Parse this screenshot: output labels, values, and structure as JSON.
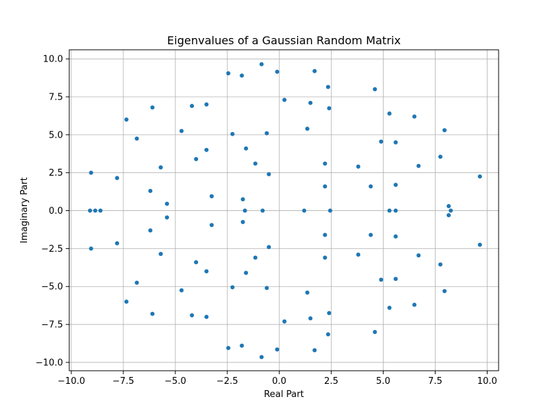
{
  "chart_data": {
    "type": "scatter",
    "title": "Eigenvalues of a Gaussian Random Matrix",
    "xlabel": "Real Part",
    "ylabel": "Imaginary Part",
    "xlim": [
      -10.1,
      10.55
    ],
    "ylim": [
      -10.55,
      10.6
    ],
    "xticks": [
      -10,
      -7.5,
      -5,
      -2.5,
      0,
      2.5,
      5,
      7.5,
      10
    ],
    "xtick_labels": [
      "−10.0",
      "−7.5",
      "−5.0",
      "−2.5",
      "0.0",
      "2.5",
      "5.0",
      "7.5",
      "10.0"
    ],
    "yticks": [
      -10,
      -7.5,
      -5,
      -2.5,
      0,
      2.5,
      5,
      7.5,
      10
    ],
    "ytick_labels": [
      "−10.0",
      "−7.5",
      "−5.0",
      "−2.5",
      "0.0",
      "2.5",
      "5.0",
      "7.5",
      "10.0"
    ],
    "grid": true,
    "marker_color": "#1f77b4",
    "points": [
      [
        -0.85,
        9.65
      ],
      [
        -0.1,
        9.15
      ],
      [
        1.7,
        9.2
      ],
      [
        -2.45,
        9.05
      ],
      [
        -1.8,
        8.9
      ],
      [
        2.35,
        8.15
      ],
      [
        4.6,
        8.0
      ],
      [
        0.25,
        7.3
      ],
      [
        1.5,
        7.1
      ],
      [
        2.4,
        6.75
      ],
      [
        -4.2,
        6.9
      ],
      [
        -3.5,
        7.0
      ],
      [
        -6.1,
        6.8
      ],
      [
        5.3,
        6.4
      ],
      [
        6.5,
        6.2
      ],
      [
        -7.35,
        6.0
      ],
      [
        -6.85,
        4.75
      ],
      [
        -4.7,
        5.25
      ],
      [
        -2.25,
        5.05
      ],
      [
        -0.6,
        5.1
      ],
      [
        1.35,
        5.4
      ],
      [
        7.95,
        5.3
      ],
      [
        4.9,
        4.55
      ],
      [
        5.6,
        4.5
      ],
      [
        -3.5,
        4.0
      ],
      [
        -1.6,
        4.1
      ],
      [
        -4.0,
        3.4
      ],
      [
        -1.15,
        3.1
      ],
      [
        2.2,
        3.1
      ],
      [
        7.75,
        3.55
      ],
      [
        -5.7,
        2.85
      ],
      [
        3.8,
        2.9
      ],
      [
        6.7,
        2.95
      ],
      [
        -9.05,
        2.5
      ],
      [
        -0.5,
        2.4
      ],
      [
        -7.8,
        2.15
      ],
      [
        9.65,
        2.25
      ],
      [
        -6.2,
        1.3
      ],
      [
        2.2,
        1.6
      ],
      [
        4.4,
        1.6
      ],
      [
        5.6,
        1.7
      ],
      [
        -3.25,
        0.95
      ],
      [
        -1.75,
        0.75
      ],
      [
        -5.4,
        0.45
      ],
      [
        8.15,
        0.3
      ],
      [
        -9.1,
        0.0
      ],
      [
        -8.85,
        0.0
      ],
      [
        -8.6,
        0.0
      ],
      [
        -1.65,
        0.0
      ],
      [
        -0.8,
        0.0
      ],
      [
        1.2,
        0.0
      ],
      [
        2.45,
        0.0
      ],
      [
        5.3,
        0.0
      ],
      [
        5.6,
        0.0
      ],
      [
        8.25,
        0.0
      ],
      [
        8.15,
        -0.3
      ],
      [
        -5.4,
        -0.45
      ],
      [
        -1.75,
        -0.75
      ],
      [
        -3.25,
        -0.95
      ],
      [
        -6.2,
        -1.3
      ],
      [
        2.2,
        -1.6
      ],
      [
        4.4,
        -1.6
      ],
      [
        5.6,
        -1.7
      ],
      [
        -7.8,
        -2.15
      ],
      [
        9.65,
        -2.25
      ],
      [
        -0.5,
        -2.4
      ],
      [
        -9.05,
        -2.5
      ],
      [
        -5.7,
        -2.85
      ],
      [
        3.8,
        -2.9
      ],
      [
        6.7,
        -2.95
      ],
      [
        -1.15,
        -3.1
      ],
      [
        2.2,
        -3.1
      ],
      [
        -4.0,
        -3.4
      ],
      [
        7.75,
        -3.55
      ],
      [
        -3.5,
        -4.0
      ],
      [
        -1.6,
        -4.1
      ],
      [
        4.9,
        -4.55
      ],
      [
        5.6,
        -4.5
      ],
      [
        -6.85,
        -4.75
      ],
      [
        -2.25,
        -5.05
      ],
      [
        -0.6,
        -5.1
      ],
      [
        -4.7,
        -5.25
      ],
      [
        7.95,
        -5.3
      ],
      [
        1.35,
        -5.4
      ],
      [
        -7.35,
        -6.0
      ],
      [
        6.5,
        -6.2
      ],
      [
        5.3,
        -6.4
      ],
      [
        2.4,
        -6.75
      ],
      [
        -6.1,
        -6.8
      ],
      [
        -4.2,
        -6.9
      ],
      [
        -3.5,
        -7.0
      ],
      [
        1.5,
        -7.1
      ],
      [
        0.25,
        -7.3
      ],
      [
        4.6,
        -8.0
      ],
      [
        2.35,
        -8.15
      ],
      [
        -1.8,
        -8.9
      ],
      [
        -2.45,
        -9.05
      ],
      [
        -0.1,
        -9.15
      ],
      [
        1.7,
        -9.2
      ],
      [
        -0.85,
        -9.65
      ]
    ]
  }
}
